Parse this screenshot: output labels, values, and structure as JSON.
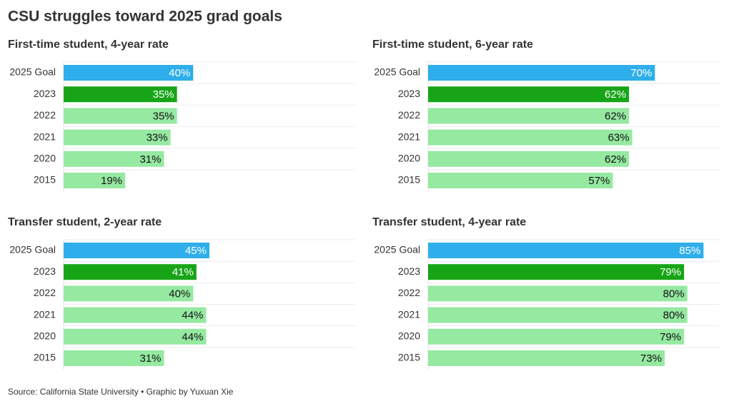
{
  "title": "CSU struggles toward 2025 grad goals",
  "source": "Source: California State University • Graphic by Yuxuan Xie",
  "chart_data": [
    {
      "type": "bar",
      "orientation": "horizontal",
      "title": "First-time student, 4-year rate",
      "categories": [
        "2025 Goal",
        "2023",
        "2022",
        "2021",
        "2020",
        "2015"
      ],
      "values": [
        40,
        35,
        35,
        33,
        31,
        19
      ],
      "value_labels": [
        "40%",
        "35%",
        "35%",
        "33%",
        "31%",
        "19%"
      ],
      "colors": [
        "#2eaeea",
        "#17a517",
        "#95e9a1",
        "#95e9a1",
        "#95e9a1",
        "#95e9a1"
      ],
      "label_colors": [
        "#ffffff",
        "#ffffff",
        "#111111",
        "#111111",
        "#111111",
        "#111111"
      ],
      "xlim": [
        0,
        90
      ]
    },
    {
      "type": "bar",
      "orientation": "horizontal",
      "title": "First-time student, 6-year rate",
      "categories": [
        "2025 Goal",
        "2023",
        "2022",
        "2021",
        "2020",
        "2015"
      ],
      "values": [
        70,
        62,
        62,
        63,
        62,
        57
      ],
      "value_labels": [
        "70%",
        "62%",
        "62%",
        "63%",
        "62%",
        "57%"
      ],
      "colors": [
        "#2eaeea",
        "#17a517",
        "#95e9a1",
        "#95e9a1",
        "#95e9a1",
        "#95e9a1"
      ],
      "label_colors": [
        "#ffffff",
        "#ffffff",
        "#111111",
        "#111111",
        "#111111",
        "#111111"
      ],
      "xlim": [
        0,
        90
      ]
    },
    {
      "type": "bar",
      "orientation": "horizontal",
      "title": "Transfer student, 2-year rate",
      "categories": [
        "2025 Goal",
        "2023",
        "2022",
        "2021",
        "2020",
        "2015"
      ],
      "values": [
        45,
        41,
        40,
        44,
        44,
        31
      ],
      "value_labels": [
        "45%",
        "41%",
        "40%",
        "44%",
        "44%",
        "31%"
      ],
      "colors": [
        "#2eaeea",
        "#17a517",
        "#95e9a1",
        "#95e9a1",
        "#95e9a1",
        "#95e9a1"
      ],
      "label_colors": [
        "#ffffff",
        "#ffffff",
        "#111111",
        "#111111",
        "#111111",
        "#111111"
      ],
      "xlim": [
        0,
        90
      ]
    },
    {
      "type": "bar",
      "orientation": "horizontal",
      "title": "Transfer student, 4-year rate",
      "categories": [
        "2025 Goal",
        "2023",
        "2022",
        "2021",
        "2020",
        "2015"
      ],
      "values": [
        85,
        79,
        80,
        80,
        79,
        73
      ],
      "value_labels": [
        "85%",
        "79%",
        "80%",
        "80%",
        "79%",
        "73%"
      ],
      "colors": [
        "#2eaeea",
        "#17a517",
        "#95e9a1",
        "#95e9a1",
        "#95e9a1",
        "#95e9a1"
      ],
      "label_colors": [
        "#ffffff",
        "#ffffff",
        "#111111",
        "#111111",
        "#111111",
        "#111111"
      ],
      "xlim": [
        0,
        90
      ]
    }
  ]
}
